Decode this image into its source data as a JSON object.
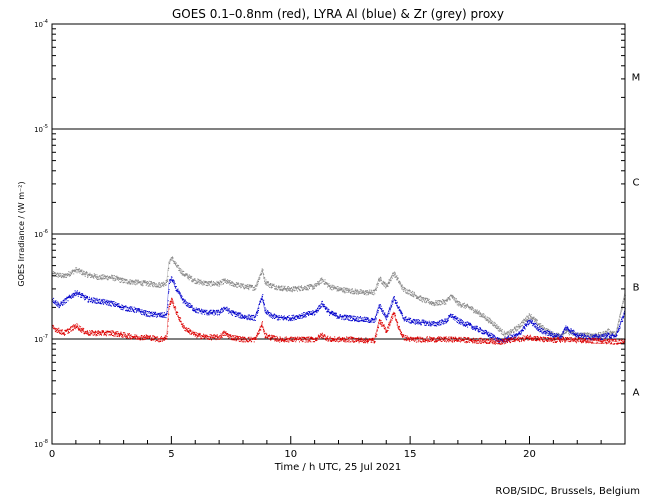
{
  "chart_data": {
    "type": "line",
    "title": "GOES 0.1–0.8nm (red), LYRA Al (blue) & Zr (grey) proxy",
    "xlabel": "Time / h UTC, 25 Jul 2021",
    "ylabel": "GOES Irradiance / (W m⁻²)",
    "xlim": [
      0,
      24
    ],
    "ylim": [
      1e-08,
      0.0001
    ],
    "yscale": "log",
    "x_ticks": [
      0,
      5,
      10,
      15,
      20
    ],
    "y_tick_labels": [
      {
        "base": "10",
        "exp": "-8"
      },
      {
        "base": "10",
        "exp": "-7"
      },
      {
        "base": "10",
        "exp": "-6"
      },
      {
        "base": "10",
        "exp": "-5"
      },
      {
        "base": "10",
        "exp": "-4"
      }
    ],
    "flare_classes": [
      {
        "label": "A",
        "low": 1e-08,
        "high": 1e-07
      },
      {
        "label": "B",
        "low": 1e-07,
        "high": 1e-06
      },
      {
        "label": "C",
        "low": 1e-06,
        "high": 1e-05
      },
      {
        "label": "M",
        "low": 1e-05,
        "high": 0.0001
      }
    ],
    "class_lines": [
      1e-07,
      1e-06,
      1e-05
    ],
    "series": [
      {
        "color": "#888888",
        "x": [
          0,
          0.5,
          1,
          1.5,
          2,
          2.5,
          3,
          3.5,
          4,
          4.5,
          4.8,
          4.9,
          5.0,
          5.2,
          5.5,
          6,
          6.5,
          7,
          7.2,
          7.5,
          8,
          8.5,
          8.8,
          8.9,
          9.1,
          9.5,
          10,
          10.5,
          11,
          11.3,
          11.6,
          12,
          12.5,
          13,
          13.5,
          13.7,
          14,
          14.3,
          14.5,
          14.7,
          15,
          15.5,
          16,
          16.5,
          16.7,
          17,
          17.5,
          18,
          18.5,
          18.8,
          19,
          19.5,
          20,
          20.5,
          21,
          21.3,
          21.5,
          22,
          22.5,
          23,
          23.3,
          23.6,
          24
        ],
        "y": [
          4.2e-07,
          4e-07,
          4.6e-07,
          4.1e-07,
          3.9e-07,
          3.9e-07,
          3.6e-07,
          3.5e-07,
          3.4e-07,
          3.3e-07,
          3.5e-07,
          5.5e-07,
          6e-07,
          5e-07,
          4.2e-07,
          3.6e-07,
          3.4e-07,
          3.4e-07,
          3.6e-07,
          3.4e-07,
          3.2e-07,
          3.1e-07,
          4.6e-07,
          3.6e-07,
          3.3e-07,
          3.1e-07,
          3e-07,
          3.1e-07,
          3.2e-07,
          3.7e-07,
          3.2e-07,
          3e-07,
          2.9e-07,
          2.8e-07,
          2.8e-07,
          3.8e-07,
          3.2e-07,
          4.3e-07,
          3.6e-07,
          3e-07,
          2.8e-07,
          2.4e-07,
          2.2e-07,
          2.3e-07,
          2.6e-07,
          2.2e-07,
          2e-07,
          1.7e-07,
          1.4e-07,
          1.2e-07,
          1.1e-07,
          1.3e-07,
          1.7e-07,
          1.3e-07,
          1.1e-07,
          1.1e-07,
          1.2e-07,
          1.1e-07,
          1.1e-07,
          1.1e-07,
          1.2e-07,
          1.1e-07,
          2.8e-07
        ]
      },
      {
        "color": "#0000cc",
        "x": [
          0,
          0.3,
          0.5,
          1,
          1.5,
          2,
          2.5,
          3,
          3.5,
          4,
          4.5,
          4.8,
          4.9,
          5.0,
          5.2,
          5.5,
          6,
          6.5,
          7,
          7.2,
          7.5,
          8,
          8.5,
          8.8,
          8.9,
          9.1,
          9.5,
          10,
          10.5,
          11,
          11.3,
          11.6,
          12,
          12.5,
          13,
          13.5,
          13.7,
          14,
          14.3,
          14.5,
          14.7,
          15,
          15.5,
          16,
          16.5,
          16.7,
          17,
          17.5,
          18,
          18.5,
          18.8,
          19,
          19.5,
          20,
          20.5,
          21,
          21.3,
          21.5,
          22,
          22.5,
          23,
          23.3,
          23.6,
          24
        ],
        "y": [
          2.4e-07,
          2.1e-07,
          2.3e-07,
          2.8e-07,
          2.4e-07,
          2.3e-07,
          2.2e-07,
          2e-07,
          1.9e-07,
          1.75e-07,
          1.7e-07,
          1.7e-07,
          3.5e-07,
          3.8e-07,
          3e-07,
          2.3e-07,
          1.9e-07,
          1.8e-07,
          1.8e-07,
          2e-07,
          1.8e-07,
          1.65e-07,
          1.6e-07,
          2.6e-07,
          1.9e-07,
          1.7e-07,
          1.6e-07,
          1.6e-07,
          1.7e-07,
          1.8e-07,
          2.2e-07,
          1.8e-07,
          1.65e-07,
          1.6e-07,
          1.55e-07,
          1.5e-07,
          2.1e-07,
          1.6e-07,
          2.5e-07,
          2e-07,
          1.6e-07,
          1.5e-07,
          1.45e-07,
          1.4e-07,
          1.5e-07,
          1.7e-07,
          1.5e-07,
          1.35e-07,
          1.2e-07,
          1.05e-07,
          9.5e-08,
          1e-07,
          1.1e-07,
          1.5e-07,
          1.2e-07,
          1.1e-07,
          1.05e-07,
          1.3e-07,
          1.1e-07,
          1.05e-07,
          1.05e-07,
          1.1e-07,
          1.05e-07,
          1.9e-07
        ]
      },
      {
        "color": "#dd0000",
        "x": [
          0,
          0.3,
          0.5,
          1,
          1.3,
          1.5,
          2,
          2.5,
          3,
          3.5,
          4,
          4.5,
          4.8,
          4.9,
          5.0,
          5.2,
          5.5,
          6,
          6.5,
          7,
          7.2,
          7.5,
          8,
          8.5,
          8.8,
          8.9,
          9.1,
          9.5,
          10,
          10.5,
          11,
          11.3,
          11.6,
          12,
          12.5,
          13,
          13.5,
          13.7,
          14,
          14.3,
          14.5,
          14.7,
          15,
          15.5,
          16,
          16.5,
          17,
          17.5,
          18,
          18.5,
          18.8,
          19,
          19.5,
          20,
          20.5,
          21,
          21.5,
          22,
          22.5,
          23,
          23.3,
          23.6,
          24
        ],
        "y": [
          1.3e-07,
          1.2e-07,
          1.15e-07,
          1.35e-07,
          1.2e-07,
          1.15e-07,
          1.15e-07,
          1.15e-07,
          1.1e-07,
          1.05e-07,
          1.05e-07,
          1e-07,
          1.05e-07,
          2.1e-07,
          2.4e-07,
          1.8e-07,
          1.3e-07,
          1.1e-07,
          1.05e-07,
          1.05e-07,
          1.15e-07,
          1.05e-07,
          1e-07,
          1e-07,
          1.4e-07,
          1.1e-07,
          1.05e-07,
          1e-07,
          1e-07,
          1e-07,
          1e-07,
          1.1e-07,
          1e-07,
          1e-07,
          1e-07,
          9.8e-08,
          9.8e-08,
          1.5e-07,
          1.2e-07,
          1.8e-07,
          1.3e-07,
          1.05e-07,
          1e-07,
          1e-07,
          1e-07,
          1e-07,
          1e-07,
          9.8e-08,
          9.7e-08,
          9.6e-08,
          9.5e-08,
          9.7e-08,
          1e-07,
          1.05e-07,
          1e-07,
          9.8e-08,
          1e-07,
          9.8e-08,
          9.7e-08,
          9.7e-08,
          9.6e-08,
          9.5e-08,
          9.7e-08
        ]
      }
    ]
  },
  "credit": "ROB/SIDC, Brussels, Belgium"
}
